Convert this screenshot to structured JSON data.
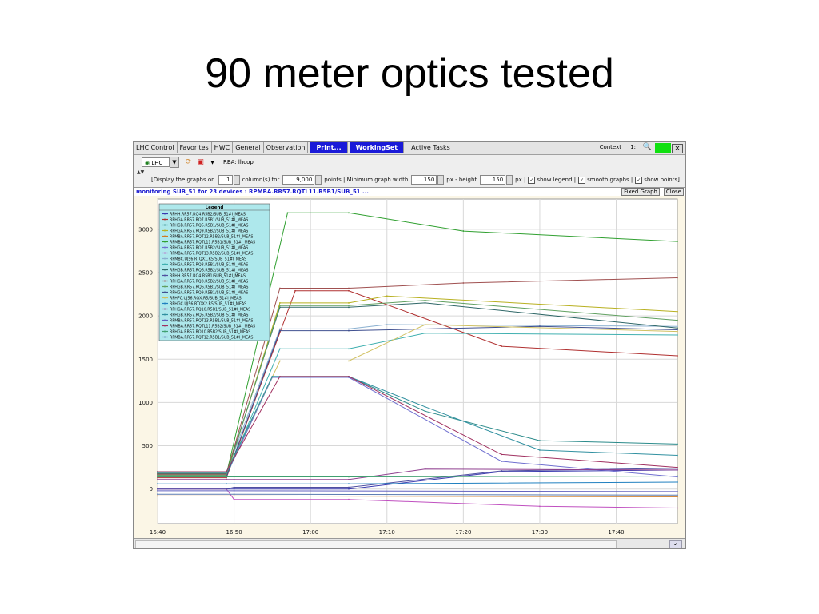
{
  "slide": {
    "title": "90 meter optics tested"
  },
  "tabs": [
    {
      "label": "LHC Control"
    },
    {
      "label": "Favorites"
    },
    {
      "label": "HWC"
    },
    {
      "label": "General"
    },
    {
      "label": "Observation"
    },
    {
      "label": "Print..."
    },
    {
      "label": "WorkingSet"
    },
    {
      "label": "Active Tasks"
    }
  ],
  "context": {
    "label": "Context",
    "value": "1:"
  },
  "toolbar": {
    "machine": "LHC",
    "rba": "RBA: lhcop"
  },
  "options": {
    "display_prefix": "[Display the graphs on",
    "columns": "1",
    "columns_suffix": "column(s) for",
    "points": "9,000",
    "points_suffix": "points | Minimum graph width",
    "width": "150",
    "height_prefix": "px - height",
    "height": "150",
    "height_suffix": "px |",
    "show_legend": "show legend |",
    "smooth_graphs": "smooth graphs |",
    "show_points": "show points]"
  },
  "status": {
    "text": "monitoring SUB_51 for 23 devices : RPMBA.RR57.RQTL11.R5B1/SUB_51 ...",
    "fixed_graph": "Fixed Graph",
    "close": "Close"
  },
  "chart_data": {
    "type": "line",
    "title": "",
    "xlabel": "",
    "ylabel": "",
    "xlim": [
      "16:40",
      "17:48"
    ],
    "ylim": [
      -400,
      3350
    ],
    "x_ticks": [
      "16:40",
      "16:50",
      "17:00",
      "17:10",
      "17:20",
      "17:30",
      "17:40"
    ],
    "y_ticks": [
      3000,
      2500,
      2000,
      1500,
      1000,
      500,
      0
    ],
    "grid": true,
    "legend_title": "Legend",
    "legend_position": "top-left",
    "series": [
      {
        "name": "RPHH.RR57.RQ4.R5B2/SUB_51#I_MEAS",
        "color": "#3a3ab0",
        "points": [
          [
            "16:40",
            0
          ],
          [
            "16:49",
            0
          ],
          [
            "16:50",
            0
          ],
          [
            "17:05",
            0
          ],
          [
            "17:25",
            200
          ],
          [
            "17:48",
            220
          ]
        ]
      },
      {
        "name": "RPHGA.RR57.RQ7.R5B1/SUB_51#I_MEAS",
        "color": "#b03030",
        "points": [
          [
            "16:40",
            130
          ],
          [
            "16:49",
            130
          ],
          [
            "16:58",
            2290
          ],
          [
            "17:05",
            2290
          ],
          [
            "17:25",
            1650
          ],
          [
            "17:48",
            1540
          ]
        ]
      },
      {
        "name": "RPHGB.RR57.RQ5.R5B1/SUB_51#I_MEAS",
        "color": "#2a8a8a",
        "points": [
          [
            "16:40",
            200
          ],
          [
            "16:49",
            200
          ],
          [
            "16:55",
            1300
          ],
          [
            "17:05",
            1300
          ],
          [
            "17:15",
            900
          ],
          [
            "17:30",
            560
          ],
          [
            "17:48",
            520
          ]
        ]
      },
      {
        "name": "RPHGA.RR57.RQ9.R5B2/SUB_51#I_MEAS",
        "color": "#b8b020",
        "points": [
          [
            "16:40",
            150
          ],
          [
            "16:49",
            150
          ],
          [
            "16:56",
            2150
          ],
          [
            "17:05",
            2150
          ],
          [
            "17:10",
            2230
          ],
          [
            "17:48",
            2050
          ]
        ]
      },
      {
        "name": "RPMBA.RR57.RQT12.R5B2/SUB_51#I_MEAS",
        "color": "#d07a20",
        "points": [
          [
            "16:40",
            -80
          ],
          [
            "16:50",
            -80
          ],
          [
            "17:48",
            -90
          ]
        ]
      },
      {
        "name": "RPMBA.RR57.RQTL11.R5B1/SUB_51#I_MEAS",
        "color": "#30a030",
        "points": [
          [
            "16:40",
            170
          ],
          [
            "16:49",
            170
          ],
          [
            "16:57",
            3190
          ],
          [
            "17:05",
            3190
          ],
          [
            "17:20",
            2980
          ],
          [
            "17:48",
            2860
          ]
        ]
      },
      {
        "name": "RPHGA.RR57.RQ7.R5B2/SUB_51#I_MEAS",
        "color": "#7070d0",
        "points": [
          [
            "16:40",
            160
          ],
          [
            "16:49",
            160
          ],
          [
            "16:55",
            1290
          ],
          [
            "17:05",
            1290
          ],
          [
            "17:25",
            320
          ],
          [
            "17:48",
            140
          ]
        ]
      },
      {
        "name": "RPMBA.RR57.RQT13.R5B2/SUB_51#I_MEAS",
        "color": "#c050c0",
        "points": [
          [
            "16:40",
            0
          ],
          [
            "16:49",
            0
          ],
          [
            "16:50",
            -120
          ],
          [
            "17:05",
            -120
          ],
          [
            "17:30",
            -200
          ],
          [
            "17:48",
            -220
          ]
        ]
      },
      {
        "name": "RPMBC.UJ56.RTQX1.R5/SUB_51#I_MEAS",
        "color": "#8ab0d0",
        "points": [
          [
            "16:40",
            190
          ],
          [
            "16:49",
            190
          ],
          [
            "16:56",
            1850
          ],
          [
            "17:05",
            1850
          ],
          [
            "17:10",
            1900
          ],
          [
            "17:48",
            1880
          ]
        ]
      },
      {
        "name": "RPHGA.RR57.RQ8.R5B1/SUB_51#I_MEAS",
        "color": "#40b0b0",
        "points": [
          [
            "16:40",
            150
          ],
          [
            "16:49",
            150
          ],
          [
            "16:56",
            1620
          ],
          [
            "17:05",
            1620
          ],
          [
            "17:15",
            1800
          ],
          [
            "17:48",
            1780
          ]
        ]
      },
      {
        "name": "RPHGB.RR57.RQ6.R5B2/SUB_51#I_MEAS",
        "color": "#306868",
        "points": [
          [
            "16:40",
            180
          ],
          [
            "16:49",
            180
          ],
          [
            "16:56",
            2100
          ],
          [
            "17:05",
            2100
          ],
          [
            "17:15",
            2150
          ],
          [
            "17:48",
            1860
          ]
        ]
      },
      {
        "name": "RPHH.RR57.RQ4.R5B1/SUB_51#I_MEAS",
        "color": "#5050a0",
        "points": [
          [
            "16:40",
            0
          ],
          [
            "16:49",
            0
          ],
          [
            "16:50",
            20
          ],
          [
            "17:05",
            20
          ],
          [
            "17:25",
            210
          ],
          [
            "17:48",
            240
          ]
        ]
      },
      {
        "name": "RPHGA.RR57.RQ8.R5B2/SUB_51#I_MEAS",
        "color": "#a05050",
        "points": [
          [
            "16:40",
            170
          ],
          [
            "16:49",
            170
          ],
          [
            "16:56",
            2320
          ],
          [
            "17:05",
            2320
          ],
          [
            "17:20",
            2380
          ],
          [
            "17:48",
            2440
          ]
        ]
      },
      {
        "name": "RPHGB.RR57.RQ6.R5B1/SUB_51#I_MEAS",
        "color": "#60a060",
        "points": [
          [
            "16:40",
            160
          ],
          [
            "16:49",
            160
          ],
          [
            "16:56",
            2120
          ],
          [
            "17:05",
            2120
          ],
          [
            "17:15",
            2180
          ],
          [
            "17:48",
            1950
          ]
        ]
      },
      {
        "name": "RPHGA.RR57.RQ9.R5B1/SUB_51#I_MEAS",
        "color": "#405090",
        "points": [
          [
            "16:40",
            140
          ],
          [
            "16:49",
            140
          ],
          [
            "16:56",
            1830
          ],
          [
            "17:05",
            1830
          ],
          [
            "17:30",
            1880
          ],
          [
            "17:48",
            1840
          ]
        ]
      },
      {
        "name": "RPHFC.UJ56.RQX.R5/SUB_51#I_MEAS",
        "color": "#d0c060",
        "points": [
          [
            "16:40",
            190
          ],
          [
            "16:49",
            190
          ],
          [
            "16:56",
            1480
          ],
          [
            "17:05",
            1480
          ],
          [
            "17:15",
            1900
          ],
          [
            "17:48",
            1820
          ]
        ]
      },
      {
        "name": "RPHGC.UJ56.RTQX2.R5/SUB_51#I_MEAS",
        "color": "#2080c0",
        "points": [
          [
            "16:40",
            60
          ],
          [
            "16:49",
            60
          ],
          [
            "16:50",
            60
          ],
          [
            "17:05",
            60
          ],
          [
            "17:48",
            80
          ]
        ]
      },
      {
        "name": "RPHGA.RR57.RQ10.R5B1/SUB_51#I_MEAS",
        "color": "#904090",
        "points": [
          [
            "16:40",
            110
          ],
          [
            "16:49",
            110
          ],
          [
            "16:50",
            110
          ],
          [
            "17:05",
            110
          ],
          [
            "17:15",
            230
          ],
          [
            "17:48",
            220
          ]
        ]
      },
      {
        "name": "RPHGB.RR57.RQ5.R5B2/SUB_51#I_MEAS",
        "color": "#3090a0",
        "points": [
          [
            "16:40",
            190
          ],
          [
            "16:49",
            190
          ],
          [
            "16:55",
            1300
          ],
          [
            "17:05",
            1300
          ],
          [
            "17:15",
            950
          ],
          [
            "17:30",
            450
          ],
          [
            "17:48",
            390
          ]
        ]
      },
      {
        "name": "RPMBA.RR57.RQT13.R5B1/SUB_51#I_MEAS",
        "color": "#6060c0",
        "points": [
          [
            "16:40",
            -20
          ],
          [
            "16:50",
            -20
          ],
          [
            "17:48",
            -30
          ]
        ]
      },
      {
        "name": "RPMBA.RR57.RQTL11.R5B2/SUB_51#I_MEAS",
        "color": "#a03060",
        "points": [
          [
            "16:40",
            200
          ],
          [
            "16:49",
            200
          ],
          [
            "16:56",
            1300
          ],
          [
            "17:05",
            1300
          ],
          [
            "17:25",
            400
          ],
          [
            "17:48",
            250
          ]
        ]
      },
      {
        "name": "RPHGA.RR57.RQ10.R5B2/SUB_51#I_MEAS",
        "color": "#40a070",
        "points": [
          [
            "16:40",
            140
          ],
          [
            "16:49",
            140
          ],
          [
            "16:50",
            140
          ],
          [
            "17:05",
            140
          ],
          [
            "17:48",
            150
          ]
        ]
      },
      {
        "name": "RPMBA.RR57.RQT12.R5B1/SUB_51#I_MEAS",
        "color": "#5a7ab0",
        "points": [
          [
            "16:40",
            -60
          ],
          [
            "16:50",
            -60
          ],
          [
            "17:48",
            -70
          ]
        ]
      }
    ]
  }
}
